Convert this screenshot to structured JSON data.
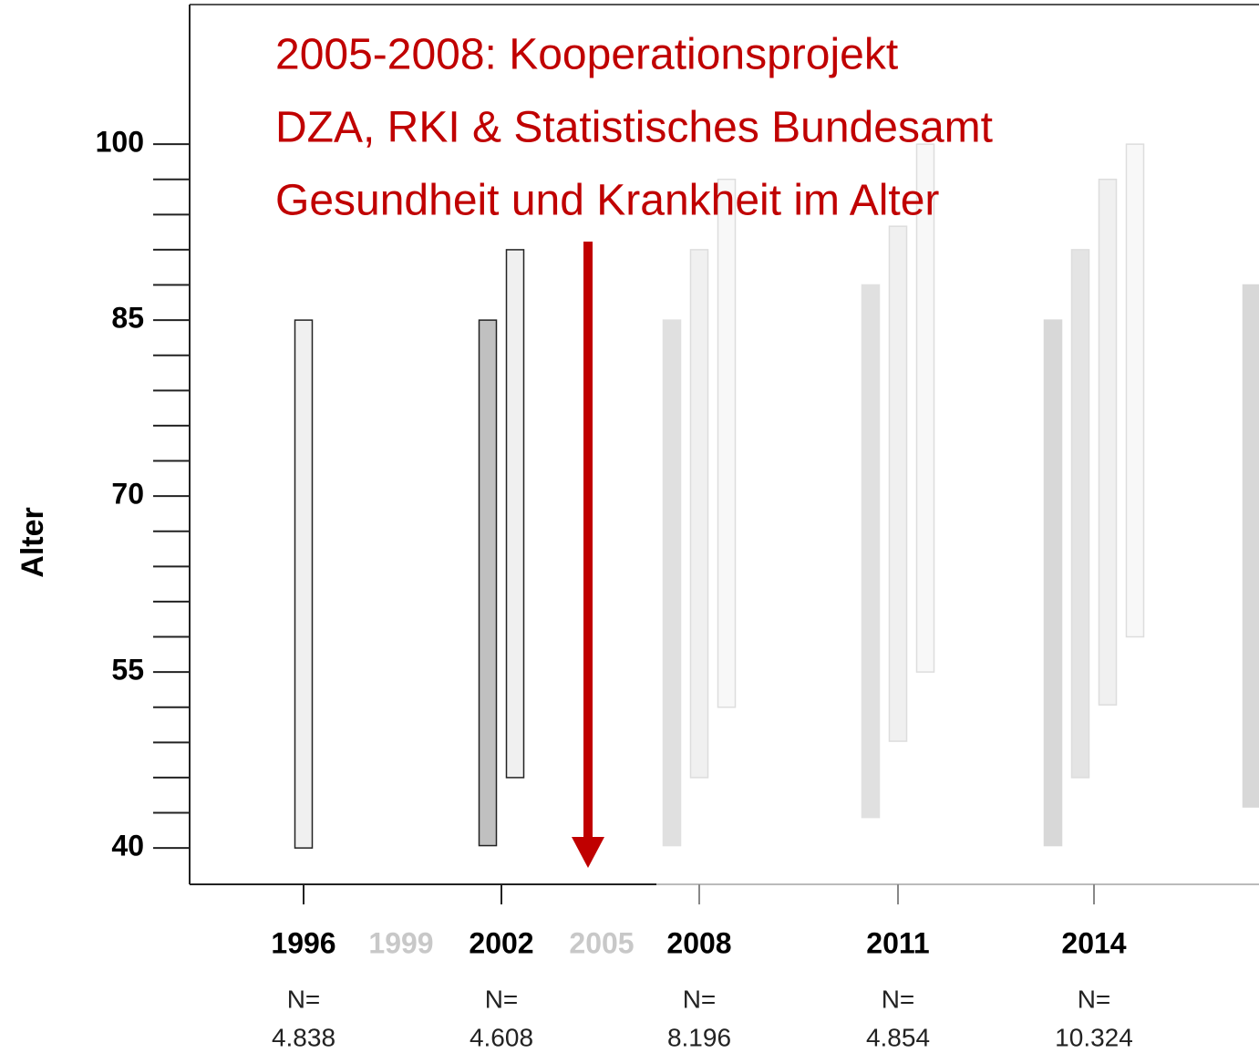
{
  "chart_data": {
    "type": "range_bar",
    "annotation": [
      "2005-2008: Kooperationsprojekt",
      "DZA, RKI & Statistisches Bundesamt",
      "Gesundheit und Krankheit im Alter"
    ],
    "annotation_color": "#c00000",
    "y_label": "Alter",
    "ylim": [
      36.9,
      111.9
    ],
    "yticks": [
      40,
      55,
      70,
      85,
      100
    ],
    "yticks_minor": [
      43,
      46,
      49,
      52,
      58,
      61,
      64,
      67,
      73,
      76,
      79,
      82,
      88,
      91,
      94,
      97
    ],
    "n_prefix": "N=",
    "groups": [
      {
        "category": "1996",
        "label_color": "#000000",
        "n": "4.838",
        "bars": [
          {
            "low": 40,
            "high": 85,
            "color": "#f0f0f0",
            "stroke": "#222222"
          }
        ]
      },
      {
        "category": "1999",
        "label_color": "#c8c8c8",
        "n": null,
        "bars": []
      },
      {
        "category": "2002",
        "label_color": "#000000",
        "n": "4.608",
        "bars": [
          {
            "low": 40.2,
            "high": 85,
            "color": "#c0c0c0",
            "stroke": "#222222"
          },
          {
            "low": 46,
            "high": 91,
            "color": "#f0f0f0",
            "stroke": "#222222"
          }
        ]
      },
      {
        "category": "2005",
        "label_color": "#c8c8c8",
        "n": null,
        "bars": []
      },
      {
        "category": "2008",
        "label_color": "#000000",
        "n": "8.196",
        "bars": [
          {
            "low": 40.2,
            "high": 85,
            "color": "#e0e0e0",
            "stroke": "#e0e0e0"
          },
          {
            "low": 46,
            "high": 91,
            "color": "#f0f0f0",
            "stroke": "#dddddd"
          },
          {
            "low": 52,
            "high": 97,
            "color": "#f8f8f8",
            "stroke": "#dddddd"
          }
        ]
      },
      {
        "category": "2011",
        "label_color": "#000000",
        "n": "4.854",
        "bars": [
          {
            "low": 42.6,
            "high": 88,
            "color": "#e0e0e0",
            "stroke": "#e0e0e0"
          },
          {
            "low": 49.1,
            "high": 93,
            "color": "#f0f0f0",
            "stroke": "#dddddd"
          },
          {
            "low": 55,
            "high": 100,
            "color": "#f8f8f8",
            "stroke": "#dddddd"
          }
        ]
      },
      {
        "category": "2014",
        "label_color": "#000000",
        "n": "10.324",
        "bars": [
          {
            "low": 40.2,
            "high": 85,
            "color": "#d8d8d8",
            "stroke": "#d8d8d8"
          },
          {
            "low": 46,
            "high": 91,
            "color": "#e4e4e4",
            "stroke": "#dddddd"
          },
          {
            "low": 52.2,
            "high": 97,
            "color": "#f0f0f0",
            "stroke": "#dddddd"
          },
          {
            "low": 58,
            "high": 100,
            "color": "#f8f8f8",
            "stroke": "#dddddd"
          }
        ]
      },
      {
        "category": null,
        "label_color": "#000000",
        "n": null,
        "bars": [
          {
            "low": 43.5,
            "high": 88,
            "color": "#d8d8d8",
            "stroke": "#d8d8d8"
          }
        ]
      }
    ]
  }
}
